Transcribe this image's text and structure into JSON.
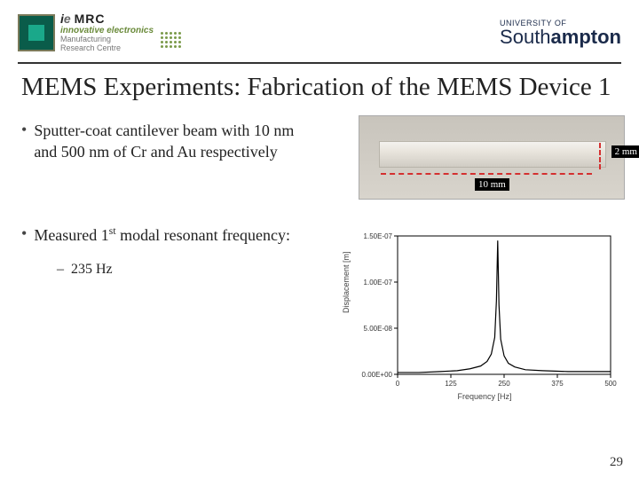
{
  "header": {
    "left_logo": {
      "brand_i": "i",
      "brand_e": "e",
      "brand_mrc": "MRC",
      "tagline1": "innovative electronics",
      "tagline2": "Manufacturing",
      "tagline3": "Research Centre"
    },
    "right_logo": {
      "prefix": "UNIVERSITY OF",
      "name_plain": "South",
      "name_bold": "ampton"
    }
  },
  "title": "MEMS Experiments: Fabrication of the MEMS Device 1",
  "bullets": [
    {
      "text": "Sputter-coat cantilever beam with 10 nm and 500 nm of Cr and Au respectively"
    },
    {
      "text_pre": "Measured 1",
      "super": "st",
      "text_post": " modal resonant frequency:",
      "sub": "235 Hz"
    }
  ],
  "cantilever": {
    "dim_length": "10 mm",
    "dim_width": "2 mm",
    "beam_color": "#e8e4dc",
    "bg_color": "#d0ccc4",
    "dim_line_color": "#d43030",
    "dim_label_bg": "#000000",
    "dim_label_color": "#ffffff"
  },
  "chart": {
    "type": "line",
    "xlabel": "Frequency [Hz]",
    "ylabel": "Displacement [m]",
    "xlim": [
      0,
      500
    ],
    "ylim": [
      0,
      1.5e-07
    ],
    "xticks": [
      0,
      125,
      250,
      375,
      500
    ],
    "xtick_labels": [
      "0",
      "125",
      "250",
      "375",
      "500"
    ],
    "yticks": [
      0,
      5e-08,
      1e-07,
      1.5e-07
    ],
    "ytick_labels": [
      "0.00E+00",
      "5.00E-08",
      "1.00E-07",
      "1.50E-07"
    ],
    "series": {
      "x": [
        0,
        50,
        100,
        140,
        170,
        195,
        210,
        220,
        228,
        232,
        235,
        238,
        242,
        250,
        260,
        275,
        300,
        340,
        400,
        500
      ],
      "y": [
        2e-09,
        2e-09,
        3e-09,
        4e-09,
        6e-09,
        9e-09,
        1.4e-08,
        2.2e-08,
        4e-08,
        8e-08,
        1.45e-07,
        7.5e-08,
        3.8e-08,
        2e-08,
        1.2e-08,
        8e-09,
        5e-09,
        4e-09,
        3e-09,
        3e-09
      ],
      "color": "#000000",
      "line_width": 1.2
    },
    "axis_color": "#000000",
    "tick_fontsize": 8,
    "label_fontsize": 9,
    "background_color": "#ffffff"
  },
  "page_number": "29"
}
